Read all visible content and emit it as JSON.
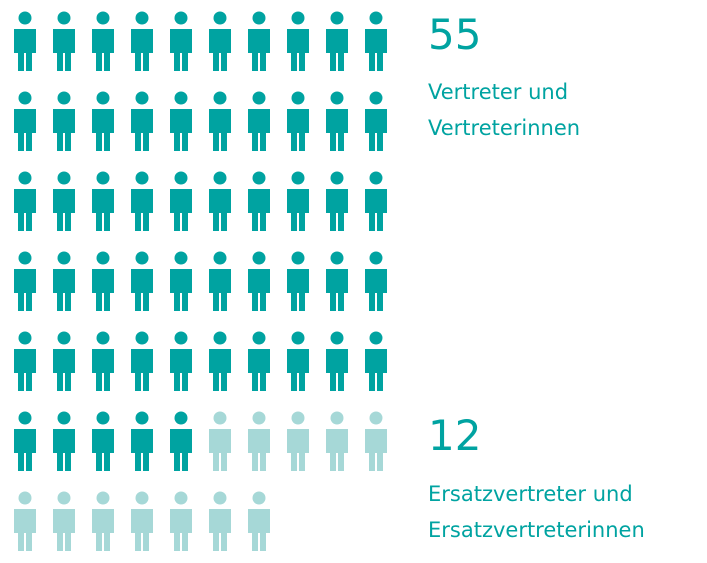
{
  "chart_data": {
    "type": "pictogram",
    "columns": 10,
    "series": [
      {
        "name": "Vertreter und Vertreterinnen",
        "color": "#00a3a1",
        "value": 55
      },
      {
        "name": "Ersatzvertreter und Ersatzvertreterinnen",
        "color": "#a6d8d7",
        "value": 12
      }
    ]
  }
}
